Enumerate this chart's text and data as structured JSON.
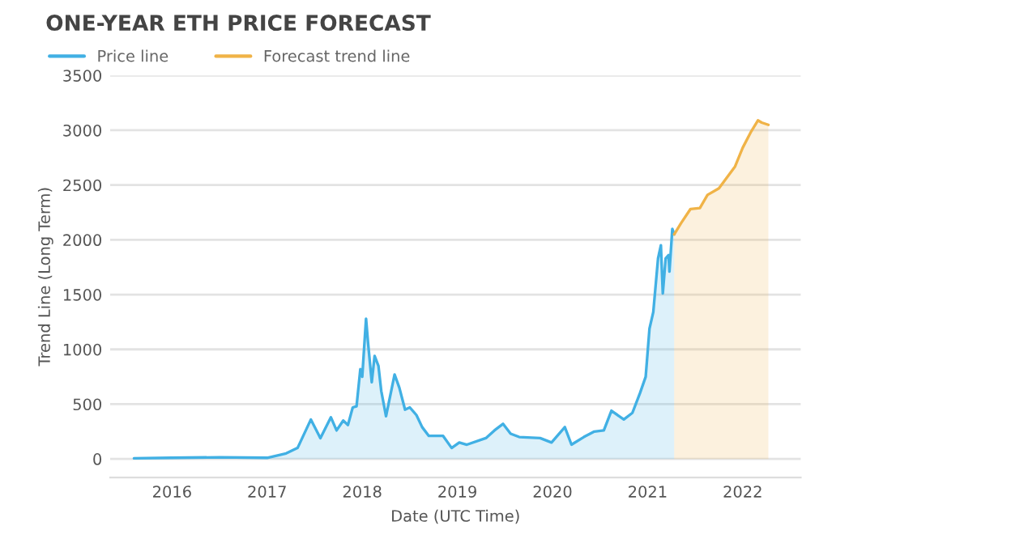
{
  "chart_data": {
    "type": "area",
    "title": "ONE-YEAR ETH PRICE FORECAST",
    "xlabel": "Date (UTC Time)",
    "ylabel": "Trend Line (Long Term)",
    "xlim": [
      2015.35,
      2022.61
    ],
    "xticks": [
      {
        "value": 2016,
        "label": "2016"
      },
      {
        "value": 2017,
        "label": "2017"
      },
      {
        "value": 2018,
        "label": "2018"
      },
      {
        "value": 2019,
        "label": "2019"
      },
      {
        "value": 2020,
        "label": "2020"
      },
      {
        "value": 2021,
        "label": "2021"
      },
      {
        "value": 2022,
        "label": "2022"
      }
    ],
    "ylim": [
      -170,
      3500
    ],
    "yticks": [
      0,
      500,
      1000,
      1500,
      2000,
      2500,
      3000,
      3500
    ],
    "grid": "y",
    "legend": "top left",
    "series": [
      {
        "name": "Price line",
        "color": "#41b0e4",
        "x": [
          2015.6,
          2016.0,
          2016.5,
          2017.0,
          2017.2,
          2017.32,
          2017.46,
          2017.56,
          2017.67,
          2017.73,
          2017.8,
          2017.85,
          2017.9,
          2017.94,
          2017.98,
          2018.0,
          2018.04,
          2018.06,
          2018.1,
          2018.13,
          2018.17,
          2018.2,
          2018.25,
          2018.34,
          2018.39,
          2018.45,
          2018.5,
          2018.57,
          2018.63,
          2018.7,
          2018.85,
          2018.94,
          2019.02,
          2019.1,
          2019.3,
          2019.39,
          2019.48,
          2019.56,
          2019.65,
          2019.87,
          2019.99,
          2020.13,
          2020.2,
          2020.33,
          2020.44,
          2020.54,
          2020.62,
          2020.75,
          2020.84,
          2020.92,
          2020.98,
          2021.02,
          2021.06,
          2021.11,
          2021.14,
          2021.16,
          2021.19,
          2021.22,
          2021.23,
          2021.26,
          2021.28
        ],
        "values": [
          5,
          10,
          15,
          10,
          50,
          100,
          360,
          190,
          380,
          260,
          350,
          310,
          470,
          480,
          820,
          750,
          1280,
          1070,
          700,
          940,
          850,
          620,
          390,
          770,
          650,
          450,
          470,
          400,
          290,
          210,
          210,
          100,
          150,
          130,
          190,
          260,
          320,
          230,
          200,
          190,
          150,
          290,
          130,
          200,
          250,
          260,
          440,
          360,
          420,
          600,
          750,
          1190,
          1340,
          1830,
          1950,
          1510,
          1830,
          1860,
          1710,
          2100,
          2050
        ]
      },
      {
        "name": "Forecast trend line",
        "color": "#f0b347",
        "x": [
          2021.28,
          2021.35,
          2021.45,
          2021.55,
          2021.63,
          2021.75,
          2021.92,
          2022.0,
          2022.09,
          2022.16,
          2022.2,
          2022.27
        ],
        "values": [
          2050,
          2150,
          2280,
          2290,
          2410,
          2470,
          2670,
          2840,
          2990,
          3090,
          3070,
          3050
        ]
      }
    ]
  }
}
